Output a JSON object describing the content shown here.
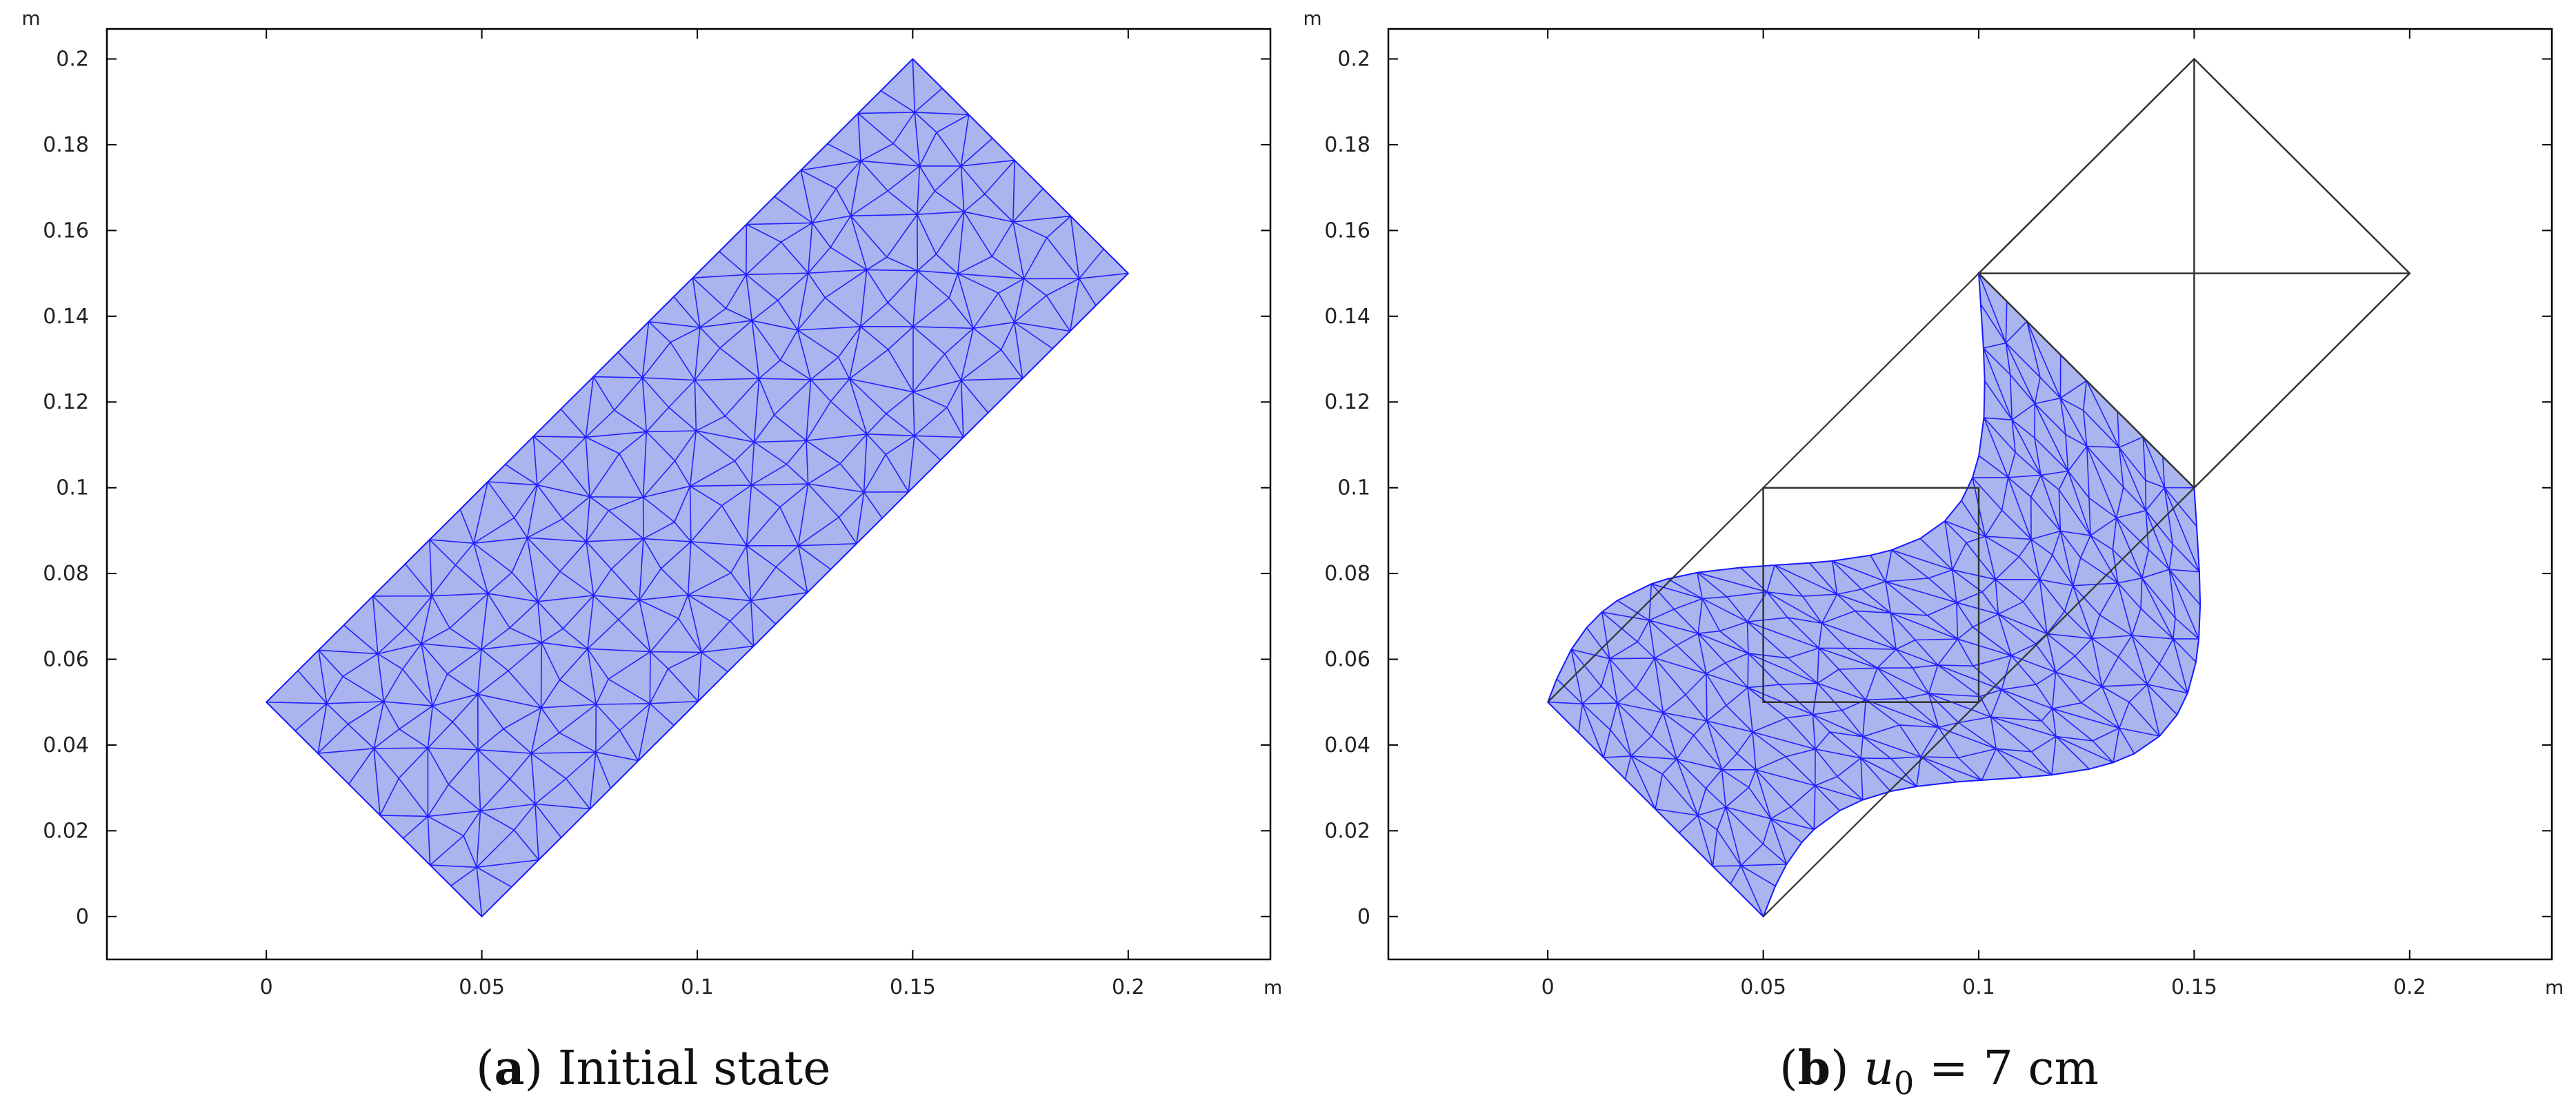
{
  "chart_data": [
    {
      "type": "mesh-plot",
      "panel_label": "a",
      "caption_text": "Initial state",
      "xlim": [
        -0.037,
        0.233
      ],
      "ylim": [
        -0.01,
        0.207
      ],
      "x_ticks": [
        "0",
        "0.05",
        "0.1",
        "0.15",
        "0.2"
      ],
      "y_ticks": [
        "0",
        "0.02",
        "0.04",
        "0.06",
        "0.08",
        "0.1",
        "0.12",
        "0.14",
        "0.16",
        "0.18",
        "0.2"
      ],
      "x_unit": "m",
      "y_unit": "m",
      "mesh_region": [
        [
          0.05,
          0.0
        ],
        [
          0.2,
          0.15
        ],
        [
          0.15,
          0.2
        ],
        [
          0.0,
          0.05
        ]
      ],
      "mesh_color": "#1a1aff",
      "fill_color": "#aab4ee"
    },
    {
      "type": "mesh-plot",
      "panel_label": "b",
      "caption_math": "u",
      "caption_sub": "0",
      "caption_rest": " = 7 cm",
      "xlim": [
        -0.037,
        0.233
      ],
      "ylim": [
        -0.01,
        0.207
      ],
      "x_ticks": [
        "0",
        "0.05",
        "0.1",
        "0.15",
        "0.2"
      ],
      "y_ticks": [
        "0",
        "0.02",
        "0.04",
        "0.06",
        "0.08",
        "0.1",
        "0.12",
        "0.14",
        "0.16",
        "0.18",
        "0.2"
      ],
      "x_unit": "m",
      "y_unit": "m",
      "reference_outline": {
        "square": [
          [
            0.05,
            0.05
          ],
          [
            0.1,
            0.05
          ],
          [
            0.1,
            0.1
          ],
          [
            0.05,
            0.1
          ]
        ],
        "diamond": [
          [
            0.1,
            0.15
          ],
          [
            0.15,
            0.2
          ],
          [
            0.2,
            0.15
          ],
          [
            0.15,
            0.1
          ]
        ],
        "diamond_cross": [
          [
            [
              0.15,
              0.1
            ],
            [
              0.15,
              0.2
            ]
          ],
          [
            [
              0.1,
              0.15
            ],
            [
              0.2,
              0.15
            ]
          ]
        ],
        "left_diagonal": [
          [
            0.0,
            0.05
          ],
          [
            0.1,
            0.15
          ]
        ],
        "bottom_diagonal": [
          [
            0.05,
            0.0
          ],
          [
            0.15,
            0.1
          ]
        ]
      },
      "deformed_region": {
        "fixed_corners": [
          [
            0.0,
            0.05
          ],
          [
            0.05,
            0.0
          ],
          [
            0.1,
            0.15
          ],
          [
            0.15,
            0.1
          ]
        ],
        "displacement": 0.07
      },
      "mesh_color": "#1a1aff",
      "fill_color": "#aab4ee",
      "outline_color": "#333333"
    }
  ]
}
